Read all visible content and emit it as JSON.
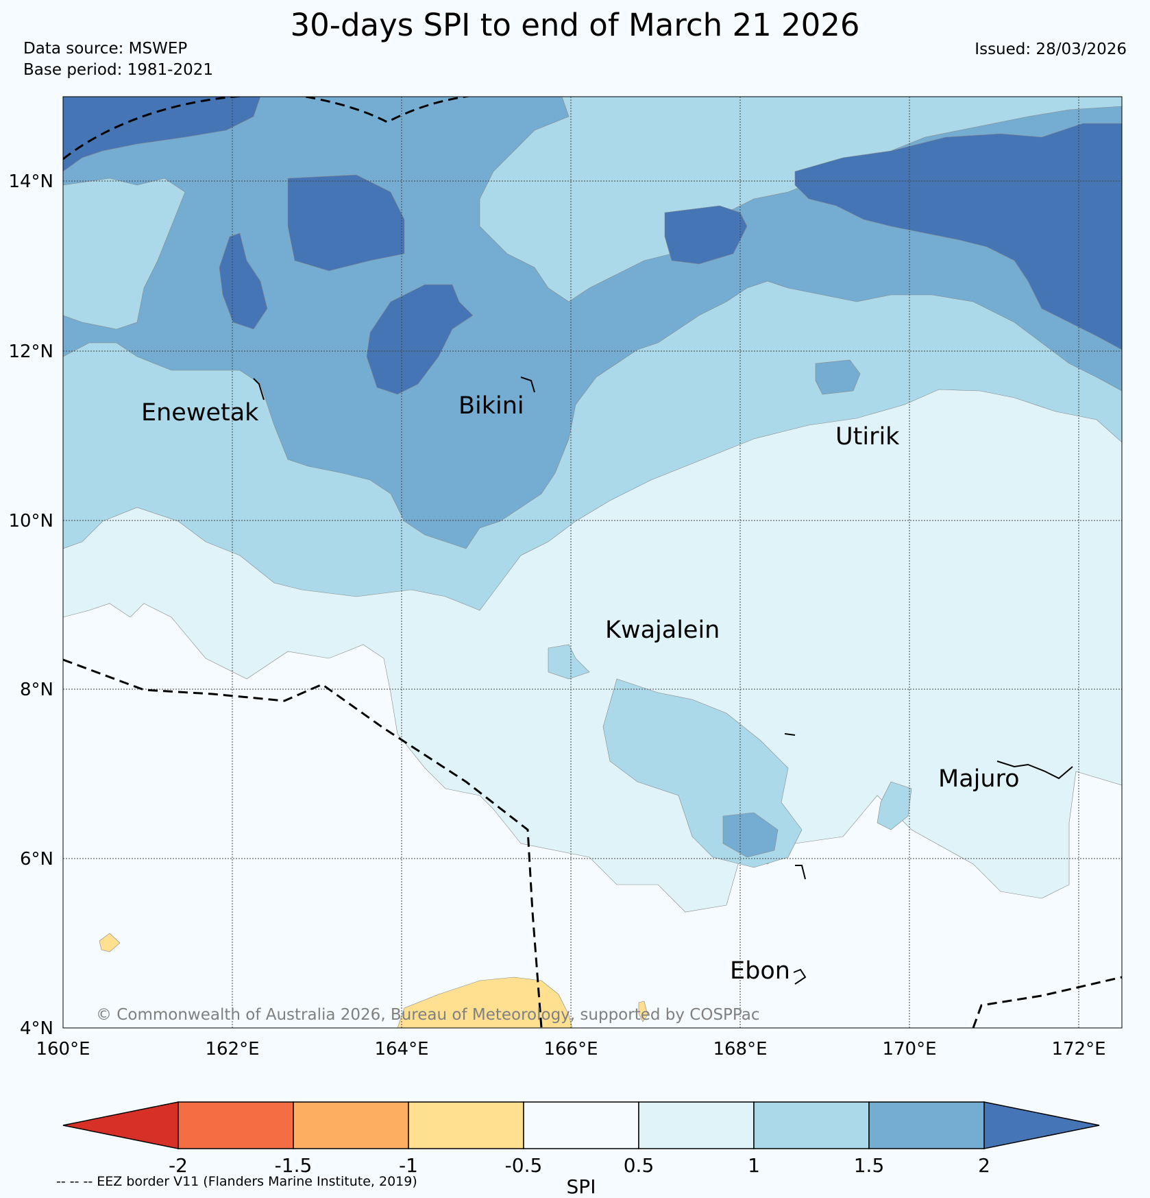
{
  "header": {
    "title": "30-days SPI to end of March 21 2026",
    "data_source": "Data source: MSWEP",
    "base_period": "Base period: 1981-2021",
    "issued": "Issued: 28/03/2026"
  },
  "axes": {
    "x_ticks": [
      "160°E",
      "162°E",
      "164°E",
      "166°E",
      "168°E",
      "170°E",
      "172°E"
    ],
    "y_ticks": [
      "14°N",
      "12°N",
      "10°N",
      "8°N",
      "6°N",
      "4°N"
    ]
  },
  "places": [
    "Enewetak",
    "Bikini",
    "Utirik",
    "Kwajalein",
    "Majuro",
    "Ebon"
  ],
  "copyright": "© Commonwealth of Australia 2026, Bureau of Meteorology, supported by COSPPac",
  "legend": {
    "title": "SPI",
    "ticks": [
      "-2",
      "-1.5",
      "-1",
      "-0.5",
      "0.5",
      "1",
      "1.5",
      "2"
    ],
    "colors": [
      "#d73027",
      "#f46d43",
      "#fdae61",
      "#fee090",
      "#f5fbfe",
      "#e0f3f8",
      "#abd9e9",
      "#74add1",
      "#4575b4"
    ],
    "eez_note": "-- -- -- EEZ border V11 (Flanders Marine Institute, 2019)"
  }
}
